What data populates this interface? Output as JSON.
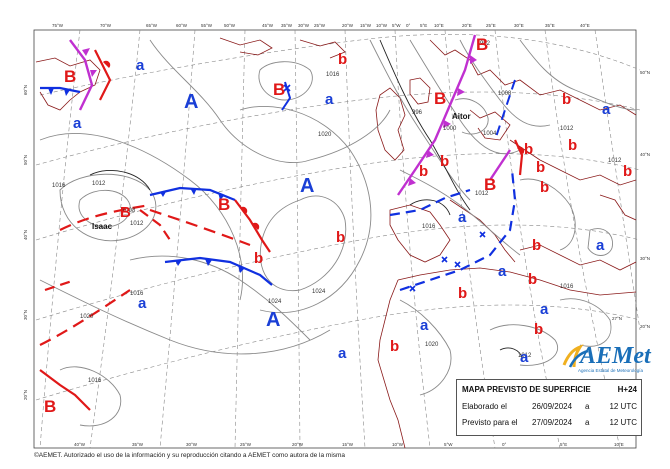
{
  "map": {
    "title": "MAPA PREVISTO DE SUPERFICIE",
    "forecast_step": "H+24",
    "issued_label": "Elaborado el",
    "issued_date": "26/09/2024",
    "issued_sep": "a",
    "issued_time": "12 UTC",
    "valid_label": "Previsto para el",
    "valid_date": "27/09/2024",
    "valid_sep": "a",
    "valid_time": "12 UTC",
    "footer": "©AEMET. Autorizado el uso de la información y su reproducción citando a AEMET como autora de la misma",
    "logo_name": "AEMet",
    "logo_sub": "Agencia Estatal de Meteorología",
    "storm_names": [
      "Isaac",
      "Aitor"
    ],
    "top_longitudes": [
      "75°W",
      "70°W",
      "65°W",
      "60°W",
      "55°W",
      "50°W",
      "45°W",
      "35°W",
      "30°W",
      "25°W",
      "20°W",
      "15°W",
      "10°W",
      "5°W",
      "0°",
      "5°E",
      "10°E",
      "20°E",
      "25°E",
      "30°E",
      "35°E",
      "40°E"
    ],
    "bottom_longitudes": [
      "40°W",
      "35°W",
      "30°W",
      "25°W",
      "20°W",
      "15°W",
      "10°W",
      "5°W",
      "0°",
      "5°E",
      "10°E"
    ],
    "left_latitudes": [
      "60°N",
      "50°N",
      "40°N",
      "30°N",
      "20°N"
    ],
    "right_latitudes": [
      "50°N",
      "40°N",
      "30°N",
      "27°N",
      "20°N"
    ],
    "isobar_labels": [
      "1004",
      "1012",
      "1016",
      "1020",
      "1024",
      "1008",
      "1000",
      "996",
      "992",
      "1028"
    ],
    "pressure_centers": {
      "high_letter": "A",
      "low_letter": "B",
      "high_color": "#1a3fd6",
      "low_color": "#e01818"
    },
    "relative_centers": {
      "high_letter": "a",
      "low_letter": "b"
    },
    "front_colors": {
      "cold": "#1030e0",
      "warm": "#e01818",
      "occluded": "#c030d0"
    }
  }
}
